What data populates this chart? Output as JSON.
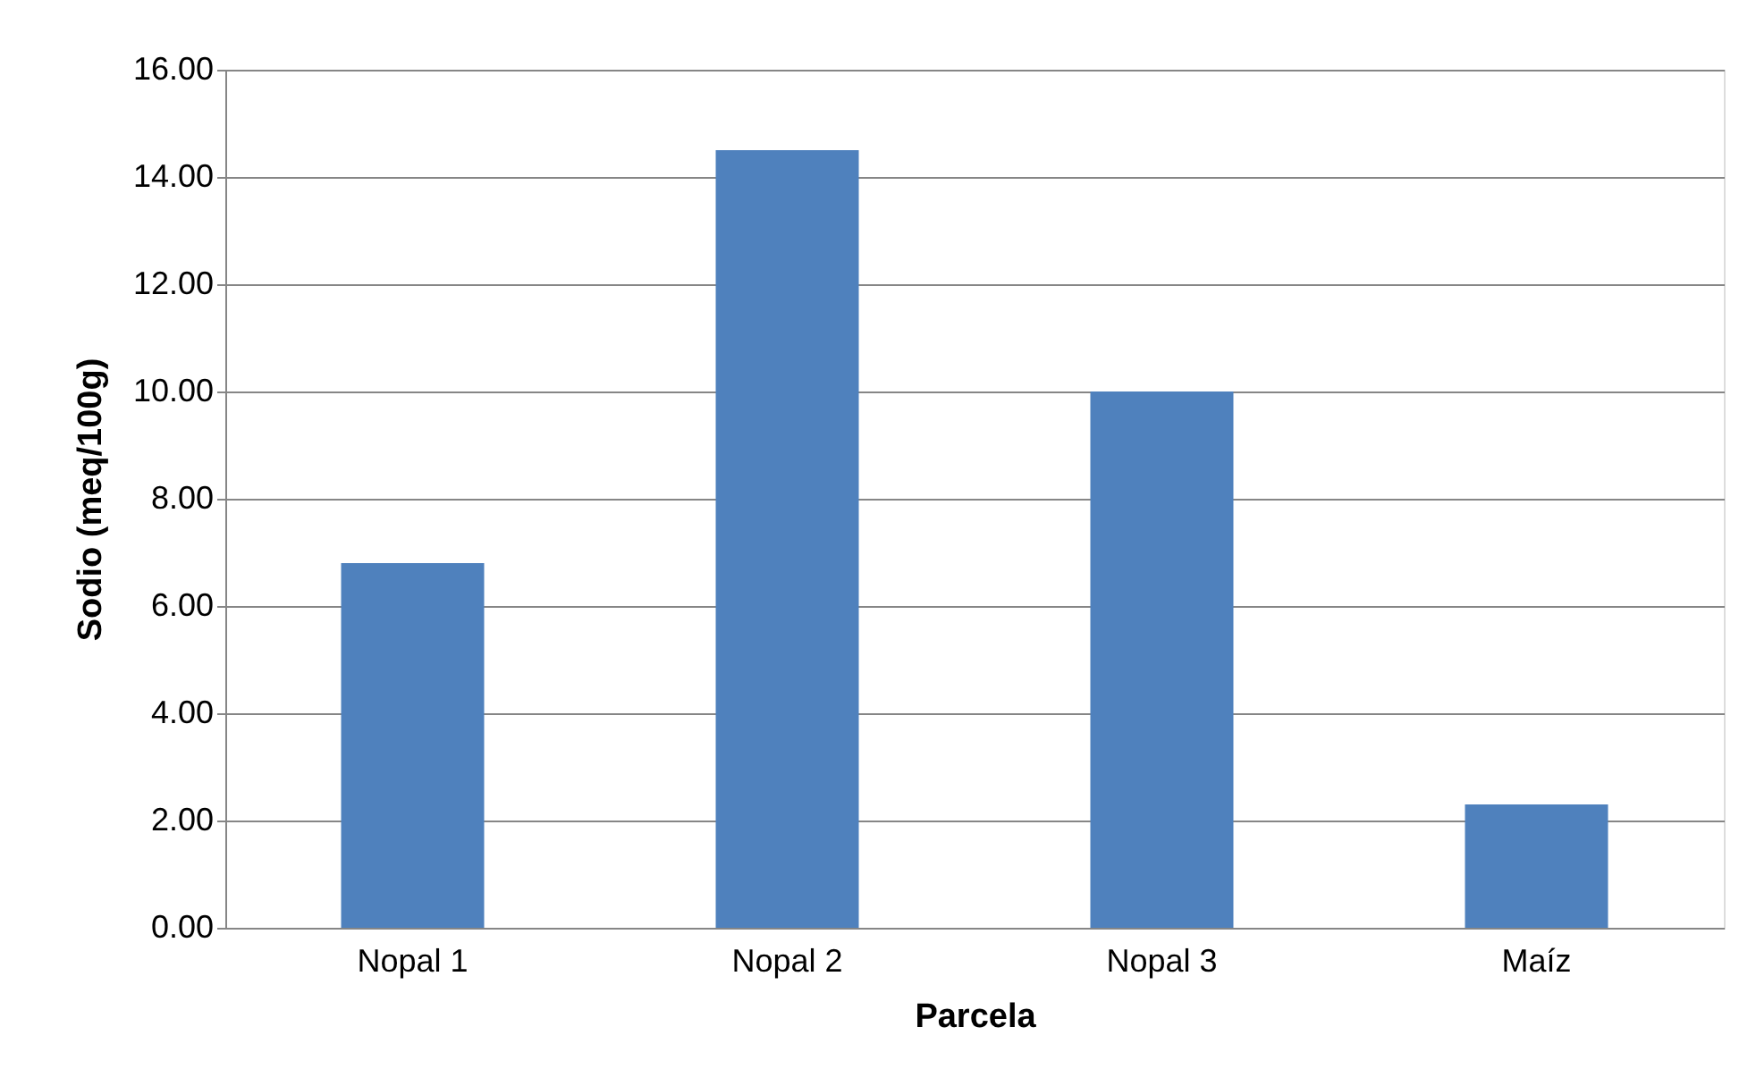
{
  "chart_data": {
    "type": "bar",
    "xlabel": "Parcela",
    "ylabel": "Sodio (meq/100g)",
    "categories": [
      "Nopal 1",
      "Nopal 2",
      "Nopal 3",
      "Maíz"
    ],
    "values": [
      6.8,
      14.5,
      10.0,
      2.3
    ],
    "color": "#4f81bd",
    "ylim": [
      0,
      16
    ],
    "yticks": [
      {
        "value": 0,
        "label": "0.00"
      },
      {
        "value": 2,
        "label": "2.00"
      },
      {
        "value": 4,
        "label": "4.00"
      },
      {
        "value": 6,
        "label": "6.00"
      },
      {
        "value": 8,
        "label": "8.00"
      },
      {
        "value": 10,
        "label": "10.00"
      },
      {
        "value": 12,
        "label": "12.00"
      },
      {
        "value": 14,
        "label": "14.00"
      },
      {
        "value": 16,
        "label": "16.00"
      }
    ],
    "grid": "y"
  }
}
